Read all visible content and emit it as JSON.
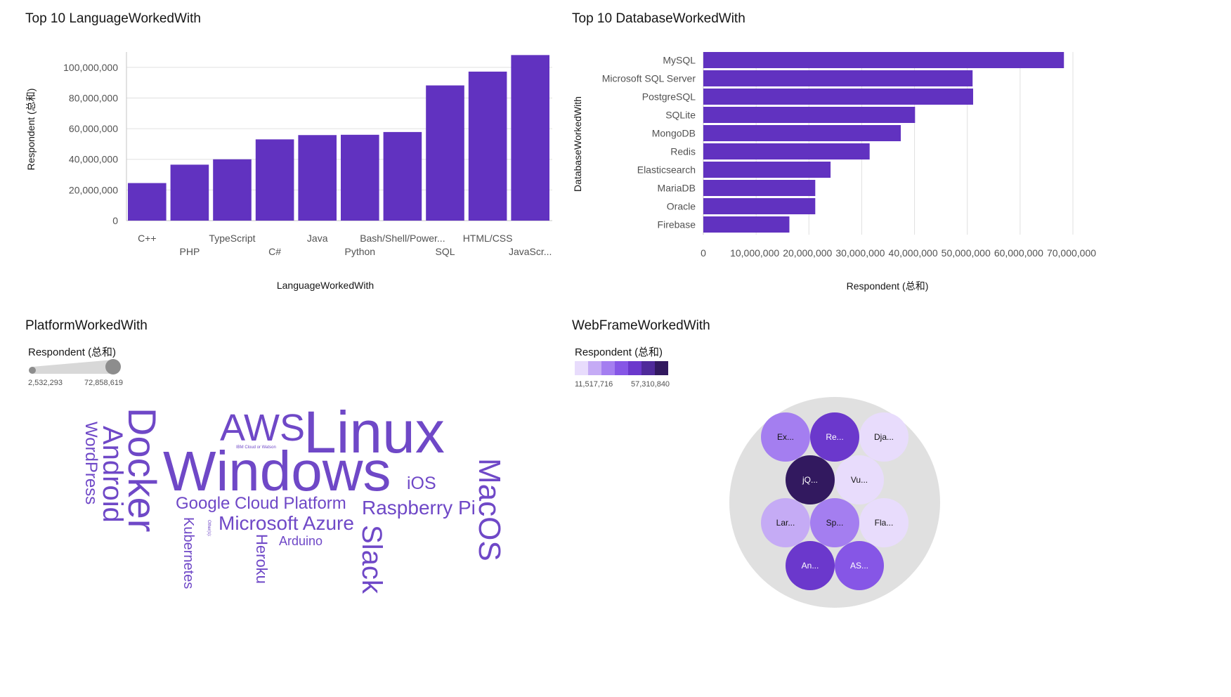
{
  "panels": {
    "language": {
      "title": "Top 10 LanguageWorkedWith"
    },
    "database": {
      "title": "Top 10 DatabaseWorkedWith"
    },
    "platform": {
      "title": "PlatformWorkedWith",
      "legend_title": "Respondent (总和)",
      "legend_min": "2,532,293",
      "legend_max": "72,858,619"
    },
    "webframe": {
      "title": "WebFrameWorkedWith",
      "legend_title": "Respondent (总和)",
      "legend_min": "11,517,716",
      "legend_max": "57,310,840"
    }
  },
  "colors": {
    "bar": "#6132c0",
    "word": "#6f48c7",
    "bubble_outer": "#e0e0e0",
    "legend_scale": [
      "#e8dcfc",
      "#c5abf5",
      "#a47ef0",
      "#8656e6",
      "#6b38cc",
      "#4f2a9a",
      "#32195f"
    ]
  },
  "chart_data": [
    {
      "type": "bar",
      "title": "Top 10 LanguageWorkedWith",
      "xlabel": "LanguageWorkedWith",
      "ylabel": "Respondent (总和)",
      "ylim": [
        0,
        110000000
      ],
      "yticks": [
        "0",
        "20,000,000",
        "40,000,000",
        "60,000,000",
        "80,000,000",
        "100,000,000"
      ],
      "categories": [
        "C++",
        "PHP",
        "TypeScript",
        "C#",
        "Java",
        "Python",
        "Bash/Shell/Power...",
        "SQL",
        "HTML/CSS",
        "JavaScr..."
      ],
      "values": [
        24500000,
        36500000,
        40000000,
        53000000,
        55800000,
        56000000,
        57800000,
        88200000,
        97200000,
        108000000
      ]
    },
    {
      "type": "bar",
      "orientation": "horizontal",
      "title": "Top 10 DatabaseWorkedWith",
      "xlabel": "Respondent (总和)",
      "ylabel": "DatabaseWorkedWith",
      "xlim": [
        0,
        70000000
      ],
      "xticks": [
        "0",
        "10,000,000",
        "20,000,000",
        "30,000,000",
        "40,000,000",
        "50,000,000",
        "60,000,000",
        "70,000,000"
      ],
      "categories": [
        "MySQL",
        "Microsoft SQL Server",
        "PostgreSQL",
        "SQLite",
        "MongoDB",
        "Redis",
        "Elasticsearch",
        "MariaDB",
        "Oracle",
        "Firebase"
      ],
      "values": [
        68300000,
        51000000,
        51100000,
        40100000,
        37400000,
        31500000,
        24100000,
        21200000,
        21200000,
        16300000
      ]
    },
    {
      "type": "wordcloud",
      "title": "PlatformWorkedWith",
      "words": [
        "Linux",
        "Windows",
        "AWS",
        "Docker",
        "Android",
        "WordPress",
        "MacOS",
        "iOS",
        "Google Cloud Platform",
        "Raspberry Pi",
        "Microsoft Azure",
        "Kubernetes",
        "Heroku",
        "Arduino",
        "Slack",
        "IBM Cloud or Watson",
        "Other(s):"
      ]
    },
    {
      "type": "bubble",
      "title": "WebFrameWorkedWith",
      "labels": [
        "Ex...",
        "Re...",
        "Dja...",
        "jQ...",
        "Vu...",
        "Lar...",
        "Sp...",
        "Fla...",
        "An...",
        "AS..."
      ],
      "values": [
        26000000,
        44000000,
        14000000,
        57310840,
        13000000,
        16000000,
        30000000,
        11517716,
        40000000,
        38000000
      ]
    }
  ]
}
